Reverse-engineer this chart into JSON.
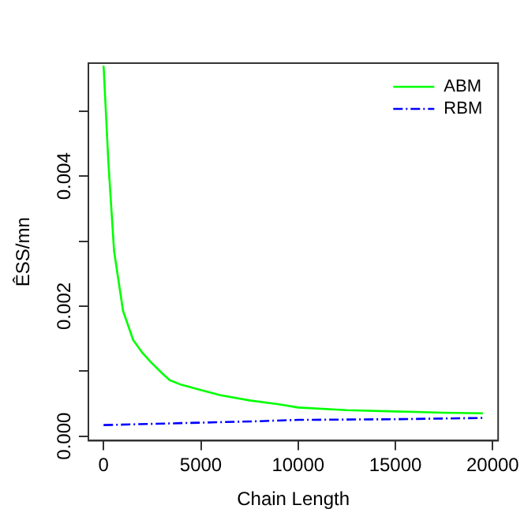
{
  "chart_data": {
    "type": "line",
    "xlabel": "Chain Length",
    "ylabel": "ÊSS/mn",
    "xlim": [
      -780,
      20280
    ],
    "xticks": [
      0,
      5000,
      10000,
      15000,
      20000
    ],
    "ylim": [
      -7e-05,
      0.00574
    ],
    "yticks": [
      {
        "value": 0,
        "label": "0.000"
      },
      {
        "value": 0.001,
        "label": null
      },
      {
        "value": 0.002,
        "label": "0.002"
      },
      {
        "value": 0.003,
        "label": null
      },
      {
        "value": 0.004,
        "label": "0.004"
      },
      {
        "value": 0.005,
        "label": null
      }
    ],
    "grid": false,
    "legend": "top right",
    "marker": "none",
    "series": [
      {
        "name": "ABM",
        "color": "#00ff00",
        "line_style": "solid",
        "x": [
          0,
          250,
          540,
          1000,
          1520,
          2000,
          2460,
          3000,
          3400,
          4000,
          5000,
          6000,
          7500,
          9000,
          10000,
          12500,
          15000,
          17500,
          19500
        ],
        "values": [
          0.0057,
          0.0042,
          0.00285,
          0.00193,
          0.00148,
          0.00128,
          0.00113,
          0.00097,
          0.00086,
          0.00079,
          0.00071,
          0.00063,
          0.00055,
          0.00049,
          0.00044,
          0.0004,
          0.00038,
          0.00036,
          0.00035
        ]
      },
      {
        "name": "RBM",
        "color": "#0000ff",
        "line_style": "dashed",
        "x": [
          0,
          4000,
          8000,
          10000,
          15000,
          19500
        ],
        "values": [
          0.00017,
          0.0002,
          0.00023,
          0.00025,
          0.00026,
          0.00028
        ]
      }
    ]
  }
}
